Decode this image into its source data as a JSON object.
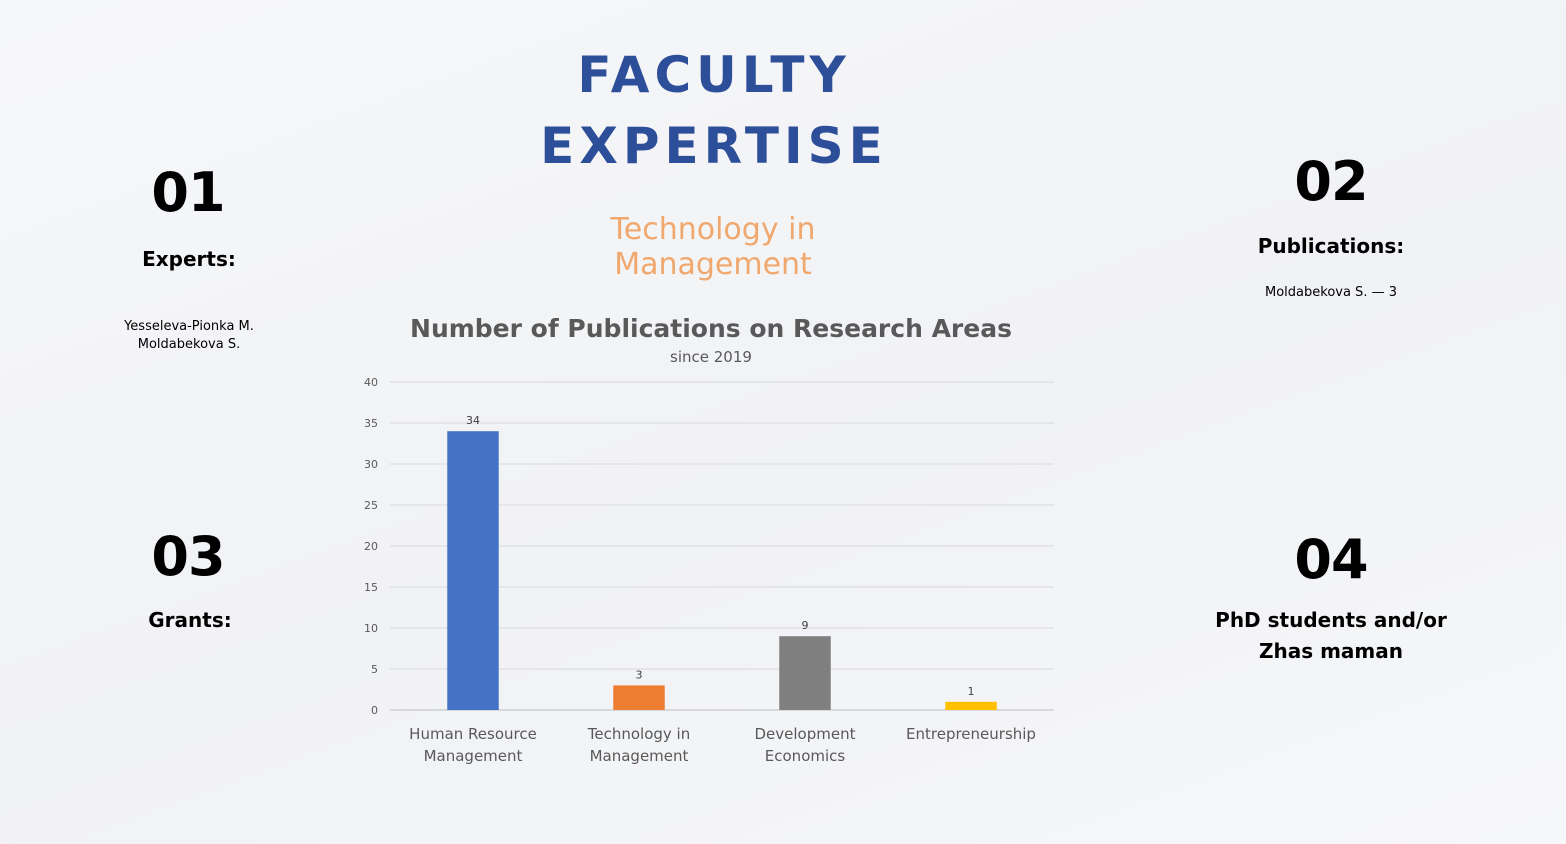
{
  "header": {
    "title_line1": "FACULTY",
    "title_line2": "EXPERTISE",
    "subtitle": "Technology in Management"
  },
  "colors": {
    "title": "#2d4f9a",
    "subtitle": "#f0a86e"
  },
  "sections": {
    "experts": {
      "number": "01",
      "label": "Experts:",
      "items": [
        "Yesseleva-Pionka M.",
        "Moldabekova S."
      ]
    },
    "publications": {
      "number": "02",
      "label": "Publications:",
      "items": [
        "Moldabekova S. — 3"
      ]
    },
    "grants": {
      "number": "03",
      "label": "Grants:"
    },
    "phd": {
      "number": "04",
      "label_line1": "PhD students and/or",
      "label_line2": "Zhas maman"
    }
  },
  "chart_data": {
    "type": "bar",
    "title": "Number of Publications on Research Areas",
    "subtitle": "since 2019",
    "categories": [
      [
        "Human Resource",
        "Management"
      ],
      [
        "Technology in",
        "Management"
      ],
      [
        "Development",
        "Economics"
      ],
      [
        "Entrepreneurship"
      ]
    ],
    "values": [
      34,
      3,
      9,
      1
    ],
    "colors": [
      "#4472c4",
      "#ed7d31",
      "#7f7f7f",
      "#ffc000"
    ],
    "ylim": [
      0,
      40
    ],
    "yticks": [
      0,
      5,
      10,
      15,
      20,
      25,
      30,
      35,
      40
    ],
    "grid": true,
    "data_labels": true
  }
}
